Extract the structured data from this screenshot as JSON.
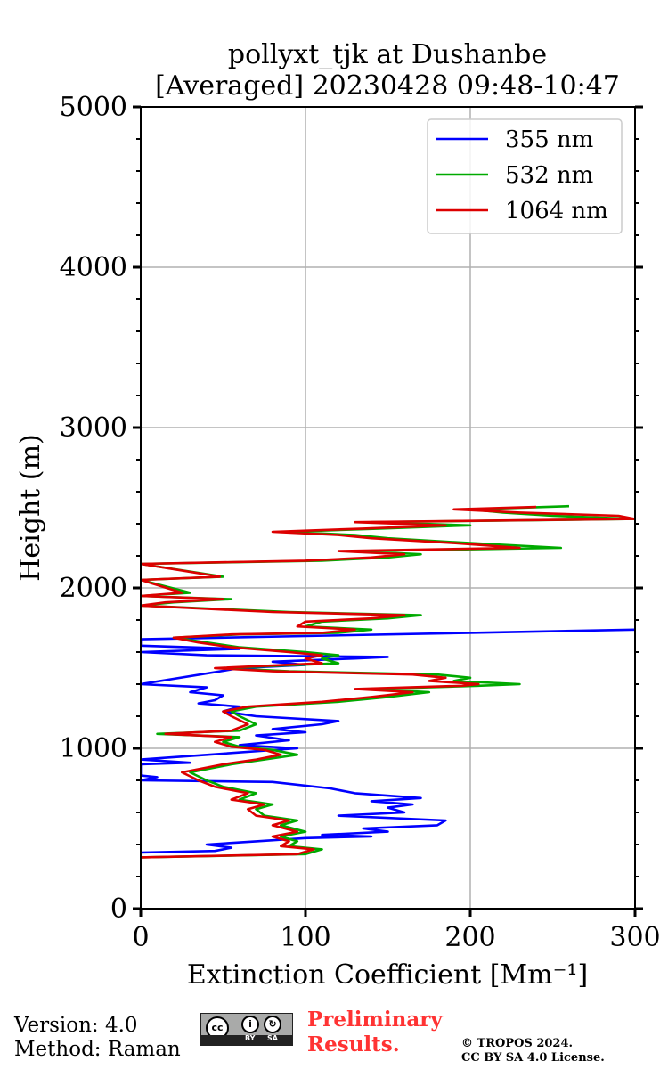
{
  "chart_data": {
    "type": "line",
    "title_line1": "pollyxt_tjk at Dushanbe",
    "title_line2": "[Averaged] 20230428 09:48-10:47",
    "xlabel": "Extinction Coefficient [Mm⁻¹]",
    "ylabel": "Height (m)",
    "xlim": [
      0,
      300
    ],
    "ylim": [
      0,
      5000
    ],
    "x_ticks": [
      "0",
      "100",
      "200",
      "300"
    ],
    "y_ticks": [
      "0",
      "1000",
      "2000",
      "3000",
      "4000",
      "5000"
    ],
    "grid": true,
    "legend_position": "top-right",
    "series": [
      {
        "name": "355 nm",
        "color": "#0000ff",
        "points": [
          [
            0,
            350
          ],
          [
            45,
            360
          ],
          [
            55,
            380
          ],
          [
            40,
            400
          ],
          [
            70,
            420
          ],
          [
            100,
            440
          ],
          [
            140,
            450
          ],
          [
            110,
            460
          ],
          [
            150,
            480
          ],
          [
            135,
            500
          ],
          [
            180,
            520
          ],
          [
            185,
            550
          ],
          [
            120,
            580
          ],
          [
            160,
            600
          ],
          [
            150,
            630
          ],
          [
            165,
            650
          ],
          [
            140,
            670
          ],
          [
            170,
            690
          ],
          [
            130,
            720
          ],
          [
            115,
            750
          ],
          [
            80,
            790
          ],
          [
            0,
            800
          ],
          [
            10,
            820
          ],
          [
            0,
            830
          ],
          [
            0,
            900
          ],
          [
            30,
            910
          ],
          [
            0,
            930
          ],
          [
            95,
            1000
          ],
          [
            60,
            1020
          ],
          [
            90,
            1050
          ],
          [
            70,
            1080
          ],
          [
            100,
            1100
          ],
          [
            80,
            1120
          ],
          [
            110,
            1150
          ],
          [
            120,
            1170
          ],
          [
            70,
            1200
          ],
          [
            50,
            1230
          ],
          [
            60,
            1260
          ],
          [
            35,
            1280
          ],
          [
            45,
            1300
          ],
          [
            50,
            1330
          ],
          [
            30,
            1350
          ],
          [
            40,
            1380
          ],
          [
            0,
            1400
          ],
          [
            60,
            1500
          ],
          [
            100,
            1520
          ],
          [
            80,
            1540
          ],
          [
            130,
            1560
          ],
          [
            150,
            1570
          ],
          [
            40,
            1580
          ],
          [
            0,
            1600
          ],
          [
            60,
            1620
          ],
          [
            0,
            1640
          ],
          [
            0,
            1680
          ],
          [
            100,
            1700
          ],
          [
            200,
            1720
          ],
          [
            300,
            1740
          ]
        ]
      },
      {
        "name": "532 nm",
        "color": "#00aa00",
        "points": [
          [
            0,
            320
          ],
          [
            100,
            340
          ],
          [
            110,
            370
          ],
          [
            90,
            390
          ],
          [
            95,
            420
          ],
          [
            85,
            450
          ],
          [
            100,
            480
          ],
          [
            85,
            520
          ],
          [
            95,
            550
          ],
          [
            75,
            580
          ],
          [
            70,
            620
          ],
          [
            80,
            650
          ],
          [
            60,
            680
          ],
          [
            70,
            720
          ],
          [
            50,
            760
          ],
          [
            40,
            800
          ],
          [
            30,
            850
          ],
          [
            45,
            880
          ],
          [
            55,
            900
          ],
          [
            75,
            930
          ],
          [
            95,
            960
          ],
          [
            80,
            990
          ],
          [
            60,
            1010
          ],
          [
            50,
            1040
          ],
          [
            60,
            1070
          ],
          [
            10,
            1090
          ],
          [
            60,
            1110
          ],
          [
            70,
            1150
          ],
          [
            60,
            1200
          ],
          [
            55,
            1230
          ],
          [
            70,
            1260
          ],
          [
            120,
            1290
          ],
          [
            150,
            1320
          ],
          [
            175,
            1350
          ],
          [
            140,
            1370
          ],
          [
            205,
            1390
          ],
          [
            230,
            1400
          ],
          [
            190,
            1420
          ],
          [
            200,
            1440
          ],
          [
            180,
            1460
          ],
          [
            90,
            1480
          ],
          [
            50,
            1500
          ],
          [
            120,
            1530
          ],
          [
            110,
            1560
          ],
          [
            120,
            1580
          ],
          [
            100,
            1600
          ],
          [
            60,
            1630
          ],
          [
            40,
            1660
          ],
          [
            20,
            1690
          ],
          [
            60,
            1710
          ],
          [
            120,
            1720
          ],
          [
            140,
            1740
          ],
          [
            100,
            1760
          ],
          [
            110,
            1790
          ],
          [
            150,
            1810
          ],
          [
            170,
            1830
          ],
          [
            90,
            1850
          ],
          [
            0,
            1890
          ],
          [
            20,
            1910
          ],
          [
            55,
            1930
          ],
          [
            0,
            1950
          ],
          [
            30,
            1970
          ],
          [
            0,
            2050
          ],
          [
            50,
            2070
          ],
          [
            0,
            2150
          ],
          [
            110,
            2170
          ],
          [
            150,
            2190
          ],
          [
            170,
            2210
          ],
          [
            130,
            2230
          ],
          [
            255,
            2250
          ],
          [
            200,
            2280
          ],
          [
            150,
            2310
          ],
          [
            130,
            2330
          ],
          [
            90,
            2350
          ],
          [
            145,
            2370
          ],
          [
            200,
            2390
          ],
          [
            140,
            2410
          ],
          [
            300,
            2430
          ],
          [
            250,
            2450
          ],
          [
            220,
            2470
          ],
          [
            200,
            2490
          ],
          [
            260,
            2510
          ]
        ]
      },
      {
        "name": "1064 nm",
        "color": "#dd0000",
        "points": [
          [
            0,
            320
          ],
          [
            95,
            340
          ],
          [
            105,
            370
          ],
          [
            85,
            390
          ],
          [
            90,
            420
          ],
          [
            80,
            450
          ],
          [
            95,
            480
          ],
          [
            80,
            520
          ],
          [
            90,
            550
          ],
          [
            70,
            580
          ],
          [
            65,
            620
          ],
          [
            75,
            650
          ],
          [
            55,
            680
          ],
          [
            65,
            720
          ],
          [
            45,
            760
          ],
          [
            35,
            800
          ],
          [
            25,
            850
          ],
          [
            40,
            880
          ],
          [
            50,
            900
          ],
          [
            70,
            930
          ],
          [
            85,
            960
          ],
          [
            75,
            990
          ],
          [
            55,
            1010
          ],
          [
            45,
            1040
          ],
          [
            55,
            1070
          ],
          [
            15,
            1090
          ],
          [
            55,
            1110
          ],
          [
            65,
            1150
          ],
          [
            55,
            1200
          ],
          [
            50,
            1230
          ],
          [
            65,
            1260
          ],
          [
            110,
            1290
          ],
          [
            140,
            1320
          ],
          [
            165,
            1350
          ],
          [
            130,
            1370
          ],
          [
            195,
            1390
          ],
          [
            205,
            1400
          ],
          [
            175,
            1420
          ],
          [
            185,
            1440
          ],
          [
            165,
            1460
          ],
          [
            80,
            1480
          ],
          [
            45,
            1500
          ],
          [
            110,
            1530
          ],
          [
            100,
            1560
          ],
          [
            110,
            1580
          ],
          [
            90,
            1600
          ],
          [
            55,
            1630
          ],
          [
            35,
            1660
          ],
          [
            20,
            1690
          ],
          [
            55,
            1710
          ],
          [
            110,
            1720
          ],
          [
            130,
            1740
          ],
          [
            95,
            1760
          ],
          [
            100,
            1790
          ],
          [
            140,
            1810
          ],
          [
            160,
            1830
          ],
          [
            80,
            1850
          ],
          [
            0,
            1890
          ],
          [
            15,
            1910
          ],
          [
            50,
            1930
          ],
          [
            0,
            1950
          ],
          [
            25,
            1970
          ],
          [
            0,
            2050
          ],
          [
            48,
            2070
          ],
          [
            0,
            2150
          ],
          [
            100,
            2170
          ],
          [
            140,
            2190
          ],
          [
            160,
            2210
          ],
          [
            120,
            2230
          ],
          [
            230,
            2250
          ],
          [
            190,
            2280
          ],
          [
            140,
            2310
          ],
          [
            120,
            2330
          ],
          [
            80,
            2350
          ],
          [
            135,
            2370
          ],
          [
            185,
            2390
          ],
          [
            130,
            2410
          ],
          [
            300,
            2430
          ],
          [
            290,
            2450
          ],
          [
            230,
            2470
          ],
          [
            190,
            2490
          ],
          [
            240,
            2505
          ]
        ]
      }
    ]
  },
  "footer": {
    "version": "Version: 4.0",
    "method": "Method: Raman",
    "cc_by": "BY",
    "cc_sa": "SA",
    "preliminary_line1": "Preliminary",
    "preliminary_line2": "Results.",
    "copyright_line1": "© TROPOS 2024.",
    "copyright_line2": "CC BY SA 4.0 License."
  }
}
